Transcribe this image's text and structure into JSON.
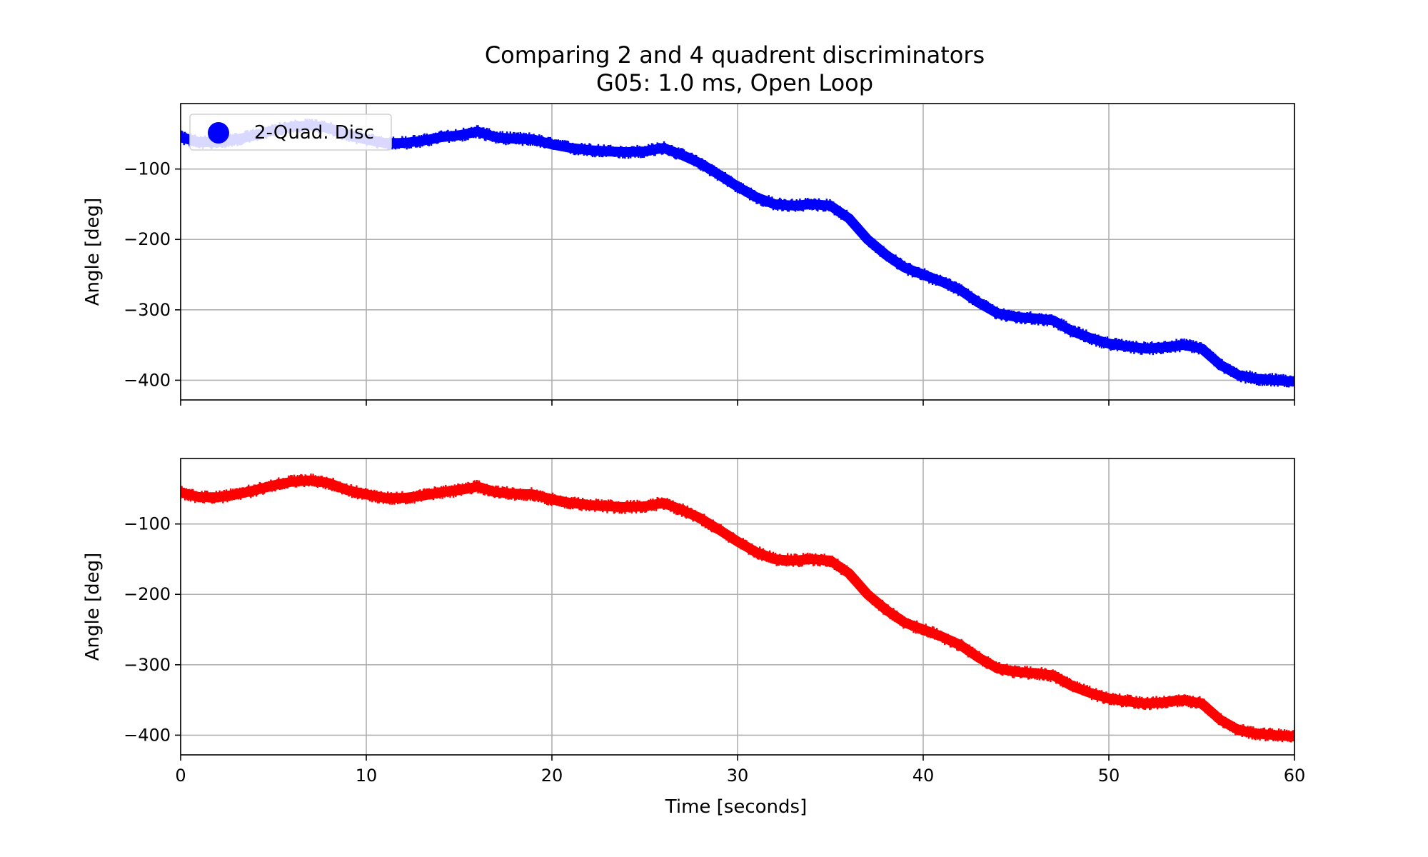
{
  "title": {
    "line1": "Comparing 2 and 4 quadrent discriminators",
    "line2": "G05: 1.0 ms, Open Loop"
  },
  "xlabel": "Time [seconds]",
  "ylabel": "Angle [deg]",
  "legend": {
    "label": "2-Quad. Disc",
    "placement": "upper-left",
    "color": "#0000ff"
  },
  "colors": {
    "series_top": "#0000ff",
    "series_bottom": "#ff0000",
    "grid": "#b0b0b0"
  },
  "chart_data": [
    {
      "type": "scatter",
      "panel": "top",
      "xlim": [
        0,
        60
      ],
      "ylim": [
        -428,
        -7
      ],
      "xticks": [
        0,
        10,
        20,
        30,
        40,
        50,
        60
      ],
      "yticks": [
        -100,
        -200,
        -300,
        -400
      ],
      "ytick_labels": [
        "−100",
        "−200",
        "−300",
        "−400"
      ],
      "grid": true,
      "ylabel": "Angle [deg]",
      "series": [
        {
          "name": "2-Quad. Disc",
          "color": "#0000ff",
          "band_width_deg": 14,
          "x": [
            0,
            1,
            2,
            3,
            4,
            5,
            6,
            7,
            8,
            9,
            10,
            11,
            12,
            13,
            14,
            15,
            16,
            17,
            18,
            19,
            20,
            21,
            22,
            23,
            24,
            25,
            26,
            27,
            28,
            29,
            30,
            31,
            32,
            33,
            34,
            35,
            36,
            37,
            38,
            39,
            40,
            41,
            42,
            43,
            44,
            45,
            46,
            47,
            48,
            49,
            50,
            51,
            52,
            53,
            54,
            55,
            56,
            57,
            58,
            59,
            60
          ],
          "y": [
            -55,
            -62,
            -62,
            -58,
            -52,
            -45,
            -40,
            -38,
            -42,
            -52,
            -58,
            -63,
            -63,
            -60,
            -55,
            -52,
            -47,
            -55,
            -57,
            -58,
            -65,
            -70,
            -73,
            -75,
            -76,
            -75,
            -70,
            -80,
            -92,
            -108,
            -125,
            -140,
            -150,
            -152,
            -150,
            -152,
            -170,
            -200,
            -222,
            -240,
            -250,
            -260,
            -272,
            -290,
            -305,
            -310,
            -312,
            -315,
            -330,
            -340,
            -348,
            -352,
            -355,
            -353,
            -350,
            -355,
            -378,
            -393,
            -398,
            -400,
            -402
          ]
        }
      ]
    },
    {
      "type": "scatter",
      "panel": "bottom",
      "xlim": [
        0,
        60
      ],
      "ylim": [
        -428,
        -7
      ],
      "xticks": [
        0,
        10,
        20,
        30,
        40,
        50,
        60
      ],
      "xtick_labels": [
        "0",
        "10",
        "20",
        "30",
        "40",
        "50",
        "60"
      ],
      "yticks": [
        -100,
        -200,
        -300,
        -400
      ],
      "ytick_labels": [
        "−100",
        "−200",
        "−300",
        "−400"
      ],
      "grid": true,
      "xlabel": "Time [seconds]",
      "ylabel": "Angle [deg]",
      "series": [
        {
          "color": "#ff0000",
          "band_width_deg": 14,
          "x": [
            0,
            1,
            2,
            3,
            4,
            5,
            6,
            7,
            8,
            9,
            10,
            11,
            12,
            13,
            14,
            15,
            16,
            17,
            18,
            19,
            20,
            21,
            22,
            23,
            24,
            25,
            26,
            27,
            28,
            29,
            30,
            31,
            32,
            33,
            34,
            35,
            36,
            37,
            38,
            39,
            40,
            41,
            42,
            43,
            44,
            45,
            46,
            47,
            48,
            49,
            50,
            51,
            52,
            53,
            54,
            55,
            56,
            57,
            58,
            59,
            60
          ],
          "y": [
            -55,
            -62,
            -62,
            -58,
            -52,
            -45,
            -40,
            -38,
            -42,
            -52,
            -58,
            -63,
            -63,
            -60,
            -55,
            -52,
            -47,
            -55,
            -57,
            -58,
            -65,
            -70,
            -73,
            -75,
            -76,
            -75,
            -70,
            -80,
            -92,
            -108,
            -125,
            -140,
            -150,
            -152,
            -150,
            -152,
            -170,
            -200,
            -222,
            -240,
            -250,
            -260,
            -272,
            -290,
            -305,
            -310,
            -312,
            -315,
            -330,
            -340,
            -348,
            -352,
            -355,
            -353,
            -350,
            -355,
            -378,
            -393,
            -398,
            -400,
            -402
          ]
        }
      ]
    }
  ]
}
